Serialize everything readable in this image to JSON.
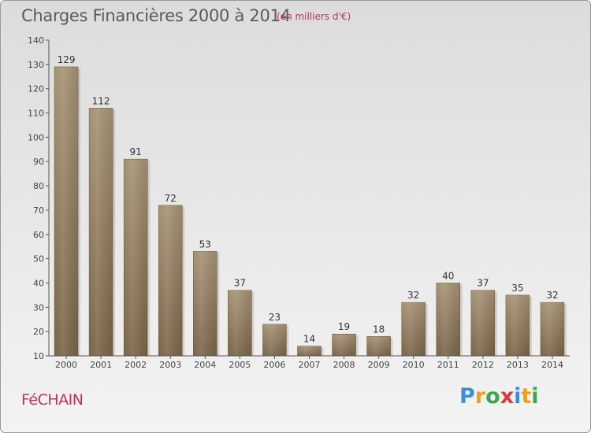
{
  "header": {
    "title": "Charges Financières 2000 à 2014",
    "subtitle": "(en milliers d'€)"
  },
  "footer": {
    "commune": "FéCHAIN",
    "logo": {
      "letters": [
        "P",
        "r",
        "o",
        "x",
        "i",
        "t",
        "i"
      ],
      "colors": [
        "#3b8fd9",
        "#f0a019",
        "#3aa84a",
        "#d93b3b",
        "#3b8fd9",
        "#f0a019",
        "#3aa84a"
      ]
    }
  },
  "colors": {
    "bar_top": "#a69274",
    "bar_bottom": "#7a6447",
    "axis": "#555555"
  },
  "chart_data": {
    "type": "bar",
    "categories": [
      "2000",
      "2001",
      "2002",
      "2003",
      "2004",
      "2005",
      "2006",
      "2007",
      "2008",
      "2009",
      "2010",
      "2011",
      "2012",
      "2013",
      "2014"
    ],
    "values": [
      129,
      112,
      91,
      72,
      53,
      37,
      23,
      14,
      19,
      18,
      32,
      40,
      37,
      35,
      32
    ],
    "ylim": [
      10,
      140
    ],
    "yticks": [
      10,
      20,
      30,
      40,
      50,
      60,
      70,
      80,
      90,
      100,
      110,
      120,
      130,
      140
    ],
    "grid": false
  }
}
